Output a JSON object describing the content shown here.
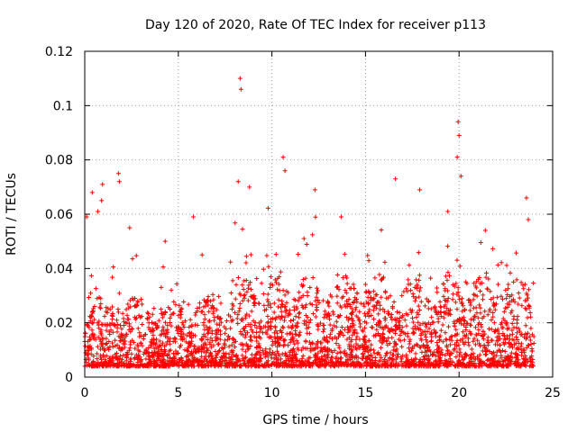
{
  "chart_data": {
    "type": "scatter",
    "title": "Day 120 of 2020, Rate Of TEC Index for receiver p113",
    "xlabel": "GPS time / hours",
    "ylabel": "ROTI / TECUs",
    "xlim": [
      0,
      25
    ],
    "ylim": [
      0,
      0.12
    ],
    "x_ticks": [
      0,
      5,
      10,
      15,
      20,
      25
    ],
    "y_ticks": [
      0,
      0.02,
      0.04,
      0.06,
      0.08,
      0.1,
      0.12
    ],
    "x_tick_labels": [
      "0",
      "5",
      "10",
      "15",
      "20",
      "25"
    ],
    "y_tick_labels": [
      "0",
      "0.02",
      "0.04",
      "0.06",
      "0.08",
      "0.1",
      "0.12"
    ],
    "grid": true,
    "marker": "+",
    "color": "#ff0000",
    "series": [
      {
        "name": "ROTI p113",
        "data_coverage_hours": [
          0,
          24
        ],
        "typical_range": [
          0.004,
          0.03
        ],
        "notable_points": [
          {
            "x": 0.1,
            "y": 0.059
          },
          {
            "x": 0.4,
            "y": 0.068
          },
          {
            "x": 0.7,
            "y": 0.061
          },
          {
            "x": 0.9,
            "y": 0.065
          },
          {
            "x": 0.95,
            "y": 0.071
          },
          {
            "x": 1.8,
            "y": 0.075
          },
          {
            "x": 1.85,
            "y": 0.072
          },
          {
            "x": 2.4,
            "y": 0.055
          },
          {
            "x": 4.3,
            "y": 0.05
          },
          {
            "x": 5.8,
            "y": 0.059
          },
          {
            "x": 8.2,
            "y": 0.072
          },
          {
            "x": 8.3,
            "y": 0.11
          },
          {
            "x": 8.35,
            "y": 0.106
          },
          {
            "x": 8.8,
            "y": 0.07
          },
          {
            "x": 10.6,
            "y": 0.081
          },
          {
            "x": 10.7,
            "y": 0.076
          },
          {
            "x": 12.3,
            "y": 0.069
          },
          {
            "x": 13.7,
            "y": 0.059
          },
          {
            "x": 16.6,
            "y": 0.073
          },
          {
            "x": 17.9,
            "y": 0.069
          },
          {
            "x": 19.4,
            "y": 0.061
          },
          {
            "x": 19.95,
            "y": 0.094
          },
          {
            "x": 20.0,
            "y": 0.089
          },
          {
            "x": 19.9,
            "y": 0.081
          },
          {
            "x": 20.1,
            "y": 0.074
          },
          {
            "x": 23.6,
            "y": 0.066
          },
          {
            "x": 23.7,
            "y": 0.058
          }
        ]
      }
    ]
  }
}
